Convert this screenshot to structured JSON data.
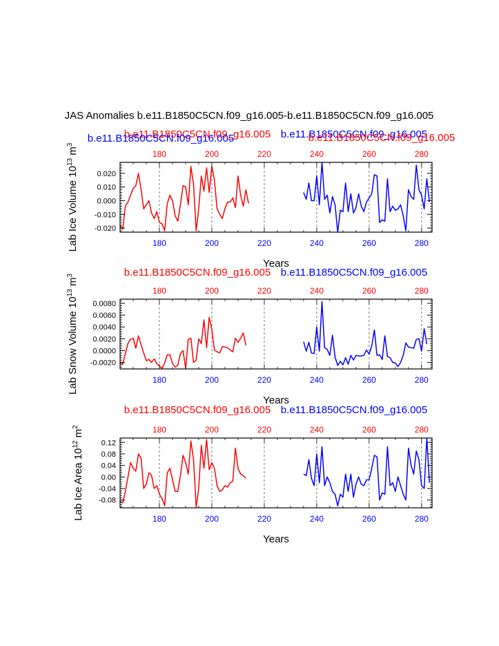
{
  "page_title": "JAS Anomalies b.e11.B1850C5CN.f09_g16.005-b.e11.B1850C5CN.f09_g16.005",
  "colors": {
    "run1": "#ff0000",
    "run2": "#0000ff",
    "axis": "#000000"
  },
  "chart_data": [
    {
      "type": "line",
      "ylabel_main": "Lab Ice Volume 10",
      "ylabel_exp": "13",
      "ylabel_unit": " m",
      "ylabel_unit_exp": "3",
      "xlabel": "Years",
      "xlim": [
        165,
        284
      ],
      "ylim": [
        -0.023,
        0.028
      ],
      "yticks": [
        -0.02,
        -0.01,
        0.0,
        0.01,
        0.02
      ],
      "ytick_labels": [
        "-0.020",
        "-0.010",
        "0.000",
        "0.010",
        "0.020"
      ],
      "xticks": [
        180,
        200,
        220,
        240,
        260,
        280
      ],
      "xtick_labels": [
        "180",
        "200",
        "220",
        "240",
        "260",
        "280"
      ],
      "top_xtick_labels": [
        "180",
        "200",
        "220",
        "240",
        "260",
        "280"
      ],
      "series_titles": [
        "b.e11.B1850C5CN.f09_g16.005",
        "b.e11.B1850C5CN.f09_g16.005"
      ],
      "overlap_titles": [
        "b.e11.B1850C5CN.f09_g16.005",
        "b.e11.B1850C5CN.f09_g16.005"
      ],
      "series": [
        {
          "name": "b.e11.B1850C5CN.f09_g16.005",
          "color": "#ff0000",
          "x_start": 165,
          "values": [
            -0.018,
            -0.021,
            -0.004,
            -0.001,
            0.004,
            0.009,
            0.011,
            0.02,
            0.008,
            -0.006,
            -0.003,
            0.0,
            -0.009,
            -0.013,
            -0.008,
            -0.016,
            -0.017,
            -0.022,
            -0.002,
            0.004,
            0.0,
            -0.011,
            -0.015,
            -0.003,
            0.011,
            0.01,
            -0.003,
            0.025,
            0.012,
            -0.022,
            -0.006,
            0.018,
            0.007,
            0.024,
            0.006,
            0.025,
            0.015,
            -0.006,
            -0.01,
            -0.013,
            -0.006,
            -0.001,
            -0.001,
            0.002,
            -0.005,
            0.018,
            0.004,
            -0.004,
            0.008,
            -0.002
          ]
        },
        {
          "name": "b.e11.B1850C5CN.f09_g16.005",
          "color": "#0000ff",
          "x_start": 235,
          "values": [
            0.006,
            0.001,
            0.013,
            0.0,
            0.0,
            0.018,
            -0.003,
            0.028,
            0.001,
            0.004,
            -0.009,
            0.003,
            -0.003,
            -0.023,
            -0.007,
            -0.008,
            0.013,
            -0.008,
            0.005,
            -0.009,
            -0.005,
            0.005,
            -0.004,
            -0.008,
            -0.001,
            0.002,
            0.005,
            0.019,
            0.018,
            -0.016,
            -0.014,
            -0.015,
            0.016,
            -0.008,
            -0.004,
            -0.007,
            -0.006,
            -0.003,
            -0.011,
            -0.022,
            0.008,
            0.003,
            0.001,
            0.026,
            0.008,
            0.004,
            -0.006,
            0.016,
            -0.001
          ]
        }
      ]
    },
    {
      "type": "line",
      "ylabel_main": "Lab Snow Volume 10",
      "ylabel_exp": "13",
      "ylabel_unit": " m",
      "ylabel_unit_exp": "3",
      "xlabel": "Years",
      "xlim": [
        165,
        284
      ],
      "ylim": [
        -0.0031,
        0.0087
      ],
      "yticks": [
        -0.002,
        0.0,
        0.002,
        0.004,
        0.006,
        0.008
      ],
      "ytick_labels": [
        "-0.0020",
        "0.0000",
        "0.0020",
        "0.0040",
        "0.0060",
        "0.0080"
      ],
      "xticks": [
        180,
        200,
        220,
        240,
        260,
        280
      ],
      "xtick_labels": [
        "180",
        "200",
        "220",
        "240",
        "260",
        "280"
      ],
      "top_xtick_labels": [
        "180",
        "200",
        "220",
        "240",
        "260",
        "280"
      ],
      "series_titles": [
        "b.e11.B1850C5CN.f09_g16.005",
        "b.e11.B1850C5CN.f09_g16.005"
      ],
      "series": [
        {
          "name": "b.e11.B1850C5CN.f09_g16.005",
          "color": "#ff0000",
          "x_start": 165,
          "values": [
            -0.002,
            -0.0023,
            -0.0005,
            0.0012,
            0.0019,
            0.0021,
            0.0004,
            0.0025,
            0.001,
            -0.0004,
            -0.0017,
            -0.0015,
            -0.002,
            -0.0014,
            -0.0022,
            -0.0026,
            -0.003,
            -0.0021,
            -0.0007,
            -0.0007,
            -0.0022,
            -0.0028,
            -0.0025,
            -0.0005,
            0.0,
            -0.003,
            0.0019,
            0.0021,
            -0.002,
            -0.0016,
            0.002,
            0.0012,
            0.0052,
            0.0005,
            0.0056,
            0.0036,
            0.0001,
            -0.0002,
            -0.0004,
            0.0007,
            0.0006,
            0.0005,
            0.0001,
            -0.0002,
            0.0021,
            0.0014,
            0.0021,
            0.003,
            0.0009
          ]
        },
        {
          "name": "b.e11.B1850C5CN.f09_g16.005",
          "color": "#0000ff",
          "x_start": 235,
          "values": [
            0.0015,
            -0.0001,
            0.0014,
            -0.0004,
            -0.0005,
            0.004,
            -0.0001,
            0.0083,
            0.0005,
            0.0002,
            -0.0008,
            0.0026,
            -0.0011,
            -0.0025,
            -0.0018,
            -0.0024,
            -0.0012,
            -0.0023,
            -0.0008,
            -0.0016,
            -0.0008,
            -0.0009,
            -0.0009,
            -0.0008,
            0.0001,
            -0.0006,
            0.0008,
            0.0035,
            -0.0008,
            -0.0007,
            -0.0015,
            0.0025,
            -0.001,
            -0.0012,
            -0.002,
            -0.0021,
            -0.0027,
            -0.002,
            -0.0008,
            0.0013,
            0.0006,
            0.0005,
            0.0004,
            0.0019,
            0.002,
            -0.0001,
            0.0037,
            0.0011
          ]
        }
      ]
    },
    {
      "type": "line",
      "ylabel_main": "Lab Ice Area 10",
      "ylabel_exp": "12",
      "ylabel_unit": " m",
      "ylabel_unit_exp": "2",
      "xlabel": "Years",
      "xlim": [
        165,
        284
      ],
      "ylim": [
        -0.107,
        0.135
      ],
      "yticks": [
        -0.08,
        -0.04,
        0.0,
        0.04,
        0.08,
        0.12
      ],
      "ytick_labels": [
        "-0.08",
        "-0.04",
        "0.00",
        "0.04",
        "0.08",
        "0.12"
      ],
      "xticks": [
        180,
        200,
        220,
        240,
        260,
        280
      ],
      "xtick_labels": [
        "180",
        "200",
        "220",
        "240",
        "260",
        "280"
      ],
      "top_xtick_labels": [
        "180",
        "200",
        "220",
        "240",
        "260",
        "280"
      ],
      "series_titles": [
        "b.e11.B1850C5CN.f09_g16.005",
        "b.e11.B1850C5CN.f09_g16.005"
      ],
      "series": [
        {
          "name": "b.e11.B1850C5CN.f09_g16.005",
          "color": "#ff0000",
          "x_start": 165,
          "values": [
            -0.085,
            -0.09,
            -0.05,
            0.0,
            0.05,
            0.03,
            0.02,
            0.08,
            0.065,
            -0.04,
            -0.025,
            0.015,
            0.005,
            -0.04,
            -0.03,
            -0.06,
            -0.075,
            -0.1,
            0.015,
            0.03,
            -0.01,
            -0.05,
            -0.05,
            0.005,
            0.075,
            0.05,
            0.01,
            0.125,
            0.06,
            -0.105,
            -0.04,
            0.11,
            0.03,
            0.13,
            0.025,
            0.05,
            0.03,
            -0.03,
            -0.05,
            -0.045,
            -0.03,
            -0.035,
            -0.02,
            -0.015,
            0.1,
            0.03,
            0.01,
            0.005,
            -0.005
          ]
        },
        {
          "name": "b.e11.B1850C5CN.f09_g16.005",
          "color": "#0000ff",
          "x_start": 235,
          "values": [
            0.01,
            0.005,
            0.06,
            -0.005,
            -0.03,
            0.08,
            -0.02,
            0.105,
            -0.03,
            0.0,
            -0.02,
            -0.05,
            -0.06,
            -0.1,
            -0.06,
            -0.07,
            0.01,
            -0.05,
            0.01,
            -0.07,
            -0.025,
            0.0,
            -0.025,
            -0.03,
            -0.01,
            -0.01,
            0.03,
            0.075,
            0.07,
            -0.08,
            -0.055,
            -0.06,
            0.105,
            -0.03,
            -0.02,
            -0.05,
            0.0,
            -0.03,
            -0.06,
            -0.08,
            0.1,
            0.04,
            0.01,
            0.09,
            0.06,
            -0.03,
            -0.04,
            0.135,
            -0.02
          ]
        }
      ]
    }
  ]
}
